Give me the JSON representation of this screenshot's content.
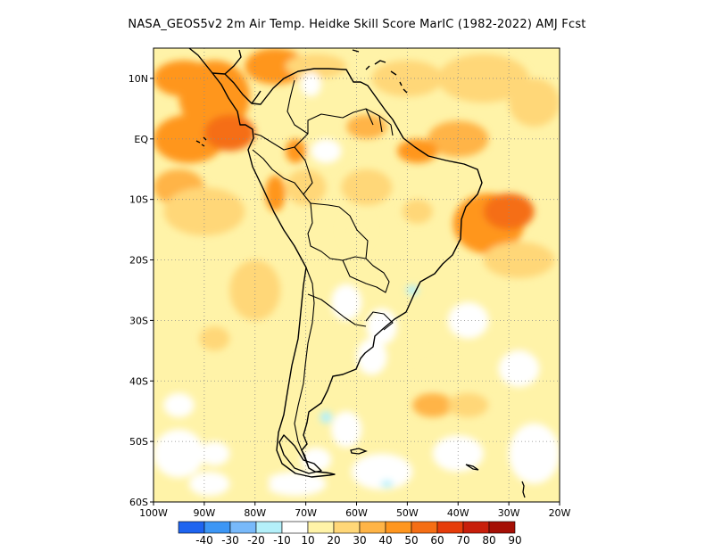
{
  "title": "NASA_GEOS5v2  2m Air Temp. Heidke Skill Score MarIC (1982-2022) AMJ Fcst",
  "map": {
    "lon_range": [
      -100,
      -20
    ],
    "lat_range": [
      -60,
      15
    ],
    "lat_ticks": [
      {
        "value": 10,
        "label": "10N"
      },
      {
        "value": 0,
        "label": "EQ"
      },
      {
        "value": -10,
        "label": "10S"
      },
      {
        "value": -20,
        "label": "20S"
      },
      {
        "value": -30,
        "label": "30S"
      },
      {
        "value": -40,
        "label": "40S"
      },
      {
        "value": -50,
        "label": "50S"
      },
      {
        "value": -60,
        "label": "60S"
      }
    ],
    "lon_ticks": [
      {
        "value": -100,
        "label": "100W"
      },
      {
        "value": -90,
        "label": "90W"
      },
      {
        "value": -80,
        "label": "80W"
      },
      {
        "value": -70,
        "label": "70W"
      },
      {
        "value": -60,
        "label": "60W"
      },
      {
        "value": -50,
        "label": "50W"
      },
      {
        "value": -40,
        "label": "40W"
      },
      {
        "value": -30,
        "label": "30W"
      },
      {
        "value": -20,
        "label": "20W"
      }
    ],
    "grid": "dotted",
    "background_color": "#fff3a8"
  },
  "colorbar": {
    "colors": [
      "#1e64f0",
      "#3c96f5",
      "#78b9fa",
      "#b4f0fa",
      "#ffffff",
      "#fff3a8",
      "#ffd778",
      "#ffb446",
      "#ff961e",
      "#f56e14",
      "#e63c0a",
      "#c81e0a",
      "#a50f05"
    ],
    "labels": [
      "-40",
      "-30",
      "-20",
      "-10",
      "10",
      "20",
      "30",
      "40",
      "50",
      "60",
      "70",
      "80",
      "90"
    ]
  },
  "skill_patches": [
    {
      "lon": -88,
      "lat": 7,
      "rx": 7,
      "ry": 6,
      "level": 4
    },
    {
      "lon": -76,
      "lat": 12,
      "rx": 6,
      "ry": 3,
      "level": 4
    },
    {
      "lon": -93,
      "lat": 0,
      "rx": 7,
      "ry": 4,
      "level": 4
    },
    {
      "lon": -85,
      "lat": 1,
      "rx": 5,
      "ry": 3,
      "level": 5
    },
    {
      "lon": -95,
      "lat": -8,
      "rx": 5,
      "ry": 3,
      "level": 3
    },
    {
      "lon": -90,
      "lat": -12,
      "rx": 8,
      "ry": 4,
      "level": 2
    },
    {
      "lon": -94,
      "lat": 10,
      "rx": 6,
      "ry": 3,
      "level": 4
    },
    {
      "lon": -68,
      "lat": 12,
      "rx": 6,
      "ry": 2,
      "level": 2
    },
    {
      "lon": -50,
      "lat": 10,
      "rx": 7,
      "ry": 3,
      "level": 2
    },
    {
      "lon": -35,
      "lat": 10,
      "rx": 9,
      "ry": 4,
      "level": 2
    },
    {
      "lon": -25,
      "lat": 6,
      "rx": 5,
      "ry": 4,
      "level": 2
    },
    {
      "lon": -40,
      "lat": 0,
      "rx": 6,
      "ry": 3,
      "level": 3
    },
    {
      "lon": -48,
      "lat": -2,
      "rx": 4,
      "ry": 2,
      "level": 4
    },
    {
      "lon": -58,
      "lat": 2,
      "rx": 4,
      "ry": 2,
      "level": 3
    },
    {
      "lon": -58,
      "lat": -8,
      "rx": 5,
      "ry": 3,
      "level": 2
    },
    {
      "lon": -70,
      "lat": -8,
      "rx": 4,
      "ry": 3,
      "level": 2
    },
    {
      "lon": -76,
      "lat": -9,
      "rx": 2,
      "ry": 3,
      "level": 4
    },
    {
      "lon": -72,
      "lat": -2,
      "rx": 2,
      "ry": 2,
      "level": 4
    },
    {
      "lon": -34,
      "lat": -14,
      "rx": 7,
      "ry": 5,
      "level": 4
    },
    {
      "lon": -30,
      "lat": -12,
      "rx": 5,
      "ry": 3,
      "level": 5
    },
    {
      "lon": -28,
      "lat": -20,
      "rx": 7,
      "ry": 3,
      "level": 2
    },
    {
      "lon": -48,
      "lat": -12,
      "rx": 3,
      "ry": 2,
      "level": 2
    },
    {
      "lon": -60,
      "lat": -15,
      "rx": 3,
      "ry": 3,
      "level": 1
    },
    {
      "lon": -90,
      "lat": -20,
      "rx": 5,
      "ry": 3,
      "level": 1
    },
    {
      "lon": -80,
      "lat": -25,
      "rx": 5,
      "ry": 5,
      "level": 2
    },
    {
      "lon": -95,
      "lat": -28,
      "rx": 3,
      "ry": 2,
      "level": 1
    },
    {
      "lon": -88,
      "lat": -33,
      "rx": 3,
      "ry": 2,
      "level": 2
    },
    {
      "lon": -28,
      "lat": -32,
      "rx": 4,
      "ry": 3,
      "level": 1
    },
    {
      "lon": -45,
      "lat": -38,
      "rx": 5,
      "ry": 3,
      "level": 1
    },
    {
      "lon": -45,
      "lat": -44,
      "rx": 4,
      "ry": 2,
      "level": 3
    },
    {
      "lon": -38,
      "lat": -44,
      "rx": 4,
      "ry": 2,
      "level": 2
    },
    {
      "lon": -30,
      "lat": -45,
      "rx": 4,
      "ry": 2,
      "level": 1
    },
    {
      "lon": -62,
      "lat": -40,
      "rx": 3,
      "ry": 2,
      "level": 1
    },
    {
      "lon": -85,
      "lat": -43,
      "rx": 5,
      "ry": 3,
      "level": 1
    },
    {
      "lon": -95,
      "lat": -52,
      "rx": 5,
      "ry": 4,
      "level": 0
    },
    {
      "lon": -88,
      "lat": -52,
      "rx": 3,
      "ry": 2,
      "level": 0
    },
    {
      "lon": -95,
      "lat": -44,
      "rx": 3,
      "ry": 2,
      "level": 0
    },
    {
      "lon": -62,
      "lat": -27,
      "rx": 3,
      "ry": 3,
      "level": 0
    },
    {
      "lon": -55,
      "lat": -31,
      "rx": 3,
      "ry": 3,
      "level": 0
    },
    {
      "lon": -57,
      "lat": -36,
      "rx": 3,
      "ry": 3,
      "level": 0
    },
    {
      "lon": -38,
      "lat": -30,
      "rx": 4,
      "ry": 3,
      "level": 0
    },
    {
      "lon": -28,
      "lat": -38,
      "rx": 4,
      "ry": 3,
      "level": 0
    },
    {
      "lon": -25,
      "lat": -52,
      "rx": 5,
      "ry": 5,
      "level": 0
    },
    {
      "lon": -40,
      "lat": -52,
      "rx": 5,
      "ry": 3,
      "level": 0
    },
    {
      "lon": -55,
      "lat": -55,
      "rx": 6,
      "ry": 3,
      "level": 0
    },
    {
      "lon": -72,
      "lat": -57,
      "rx": 6,
      "ry": 2,
      "level": 0
    },
    {
      "lon": -68,
      "lat": -53,
      "rx": 3,
      "ry": 2,
      "level": 0
    },
    {
      "lon": -62,
      "lat": -48,
      "rx": 3,
      "ry": 3,
      "level": 0
    },
    {
      "lon": -80,
      "lat": -57,
      "rx": 3,
      "ry": 2,
      "level": 1
    },
    {
      "lon": -89,
      "lat": -57,
      "rx": 4,
      "ry": 2,
      "level": 0
    },
    {
      "lon": -66,
      "lat": -2,
      "rx": 3,
      "ry": 2,
      "level": 0
    },
    {
      "lon": -69,
      "lat": 9,
      "rx": 2,
      "ry": 2,
      "level": 0
    },
    {
      "lon": -49,
      "lat": -25,
      "rx": 1.2,
      "ry": 0.8,
      "level": -1
    },
    {
      "lon": -66,
      "lat": -46,
      "rx": 1.2,
      "ry": 1,
      "level": -1
    },
    {
      "lon": -54,
      "lat": -57,
      "rx": 1.2,
      "ry": 0.6,
      "level": -1
    }
  ],
  "countries_note": "South America outline",
  "islands_names": [
    "falklands-islands",
    "galapagos-islands"
  ]
}
